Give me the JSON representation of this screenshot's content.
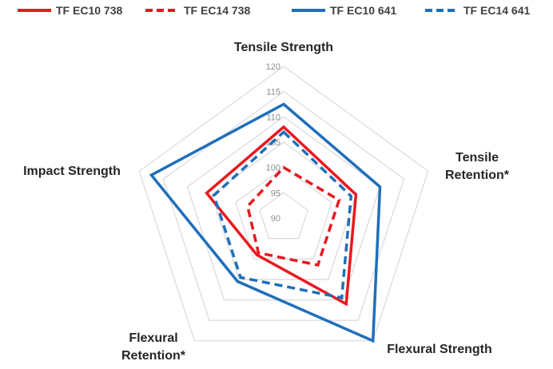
{
  "chart_data": {
    "type": "radar",
    "title": "",
    "axes": [
      {
        "lines": [
          "Tensile Strength"
        ]
      },
      {
        "lines": [
          "Tensile",
          "Retention*"
        ]
      },
      {
        "lines": [
          "Flexural Strength"
        ]
      },
      {
        "lines": [
          "Flexural",
          "Retention*"
        ]
      },
      {
        "lines": [
          "Impact Strength"
        ]
      }
    ],
    "r_ticks": [
      90,
      95,
      100,
      105,
      110,
      115,
      120
    ],
    "r_range": [
      90,
      120
    ],
    "grid": true,
    "legend_position": "top",
    "series": [
      {
        "name": "TF EC10 738",
        "color": "#e8191f",
        "dash": "solid",
        "values": [
          108,
          105,
          111,
          99,
          106
        ]
      },
      {
        "name": "TF EC14 738",
        "color": "#e8191f",
        "dash": "dashed",
        "values": [
          100,
          101.5,
          101.5,
          98.5,
          97.5
        ]
      },
      {
        "name": "TF EC10 641",
        "color": "#1f6fba",
        "dash": "solid",
        "values": [
          112.5,
          110,
          120,
          105.5,
          117.5
        ]
      },
      {
        "name": "TF EC14 641",
        "color": "#1f6fba",
        "dash": "dashed",
        "values": [
          107,
          104,
          109.5,
          104.5,
          104.5
        ]
      }
    ]
  }
}
